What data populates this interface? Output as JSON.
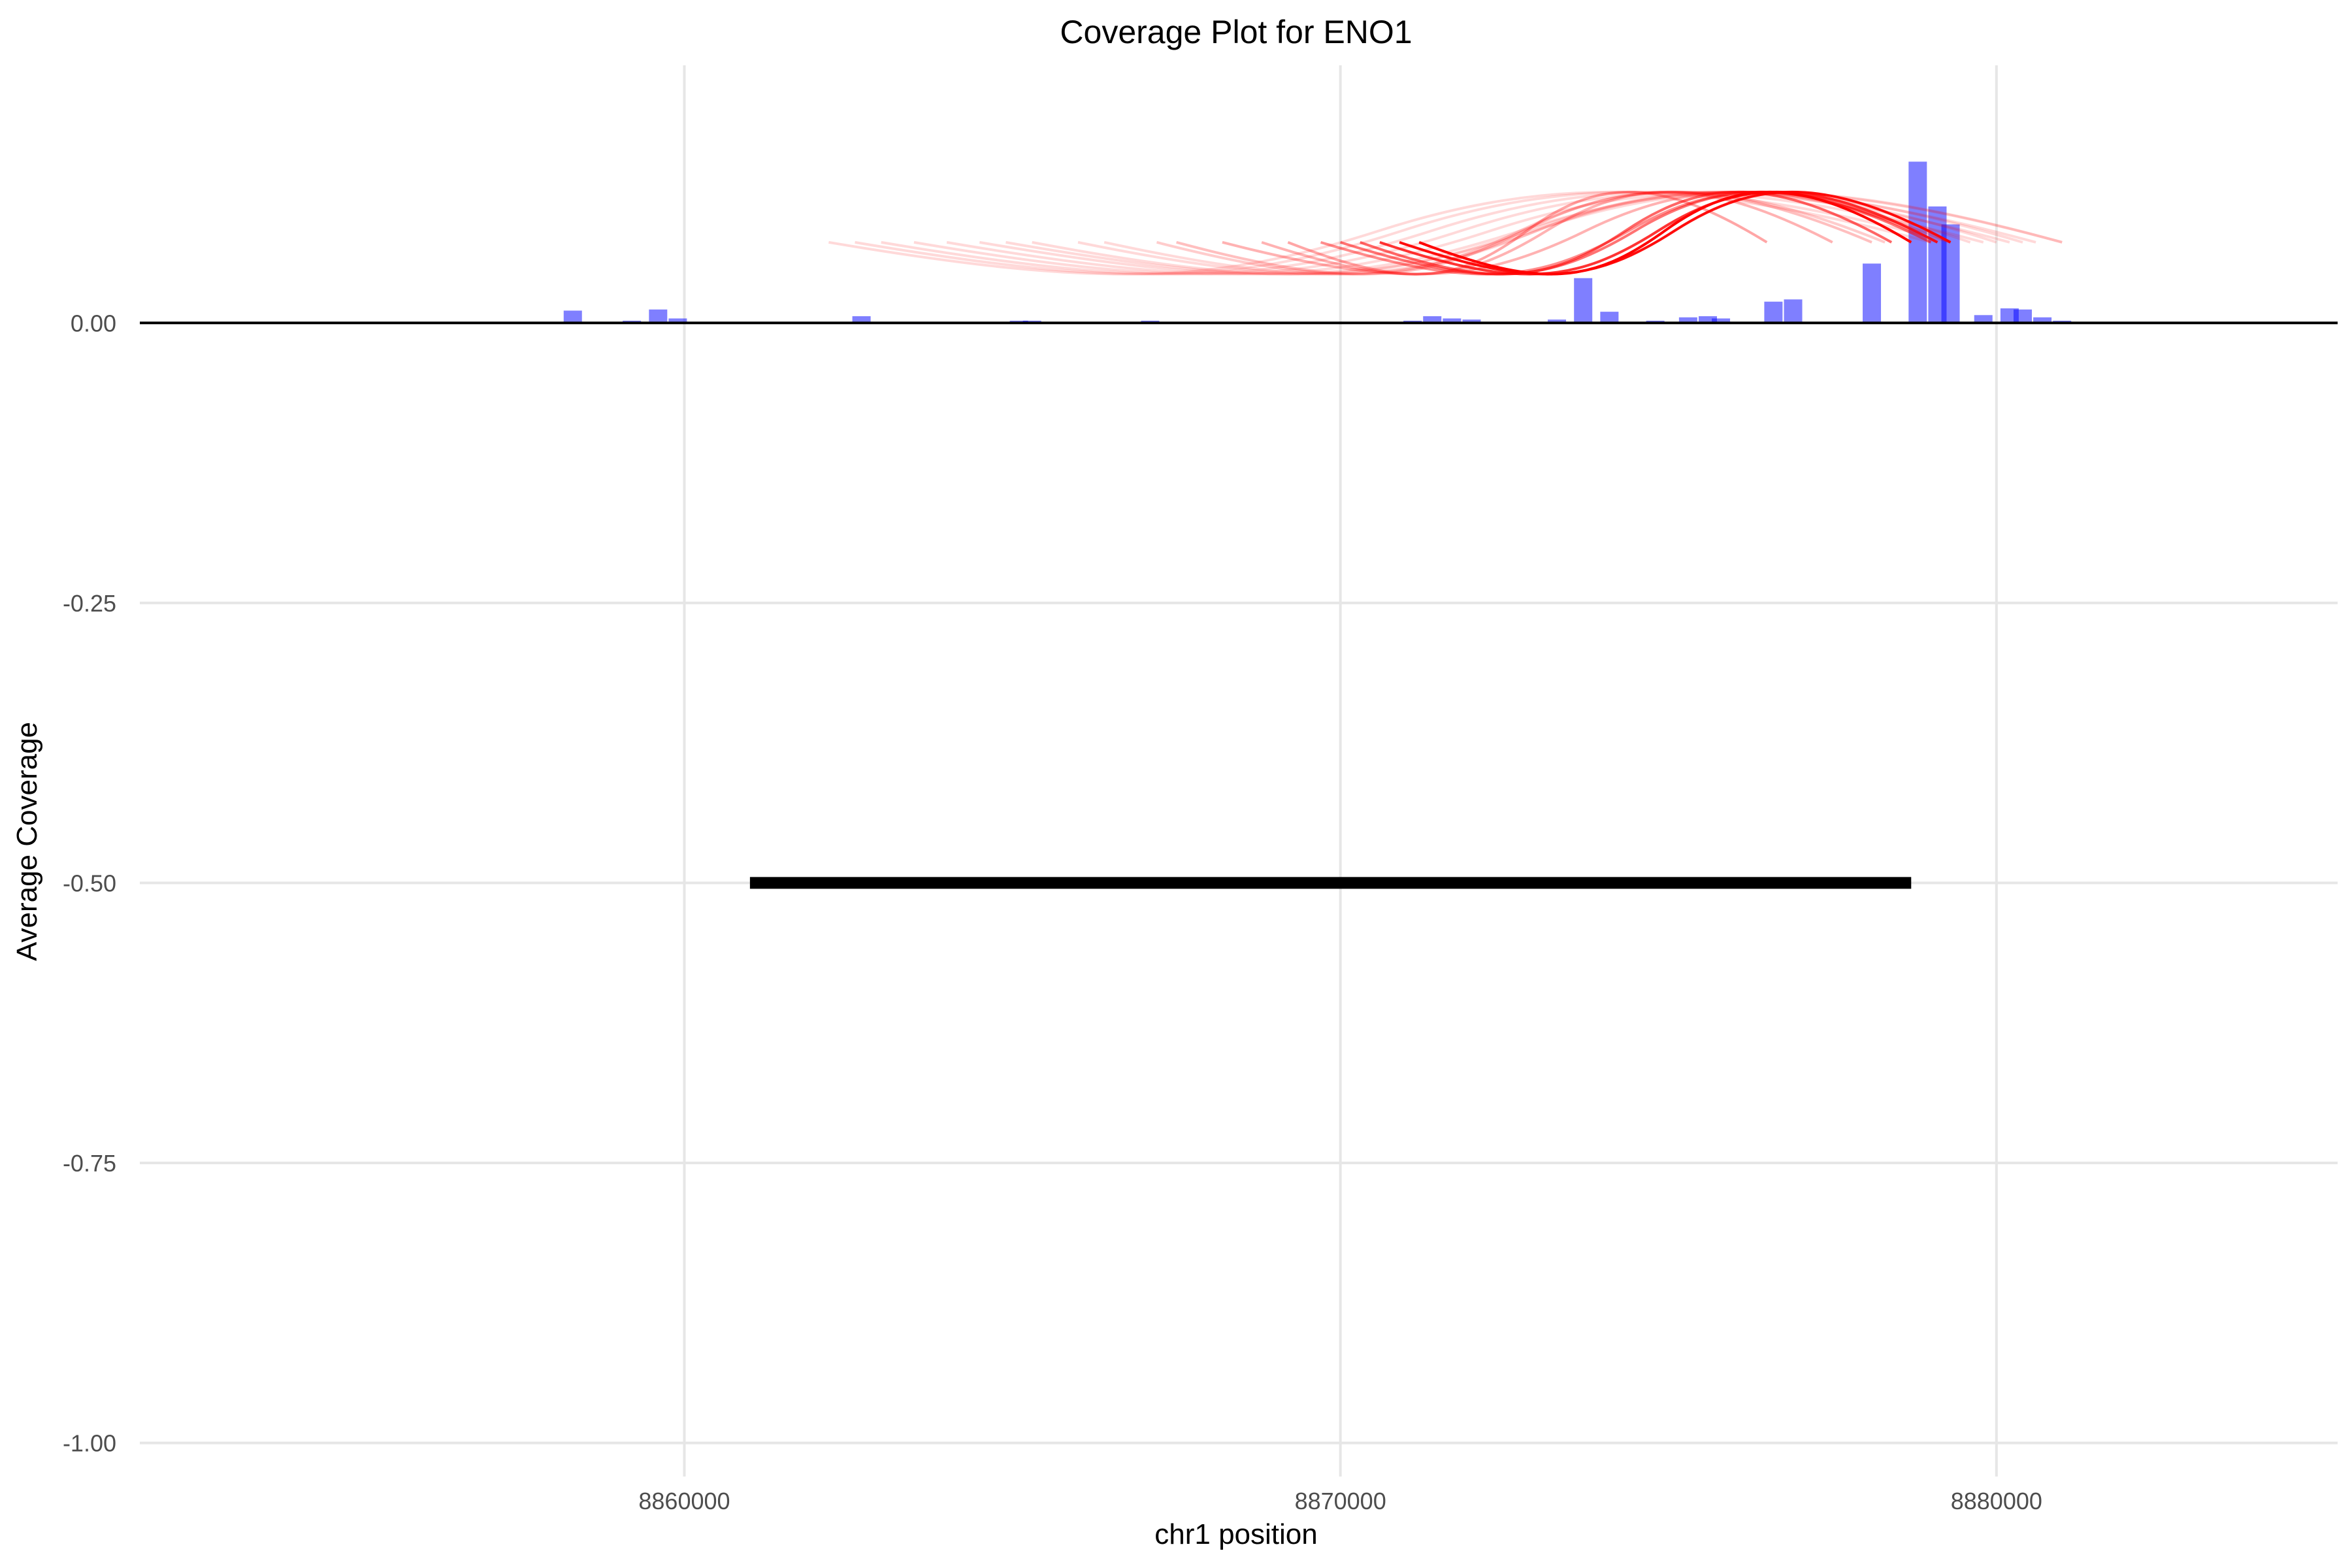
{
  "chart_data": {
    "type": "bar",
    "title": "Coverage Plot for ENO1",
    "xlabel": "chr1 position",
    "ylabel": "Average Coverage",
    "xlim": [
      8851700,
      8885200
    ],
    "ylim": [
      -1.03,
      0.23
    ],
    "x_ticks": [
      8860000,
      8870000,
      8880000
    ],
    "x_tick_labels": [
      "8860000",
      "8870000",
      "8880000"
    ],
    "y_ticks": [
      0.0,
      -0.25,
      -0.5,
      -0.75,
      -1.0
    ],
    "y_tick_labels": [
      "0.00",
      "-0.25",
      "-0.50",
      "-0.75",
      "-1.00"
    ],
    "grid": true,
    "colors": {
      "coverage": "#0000ff",
      "junction": "#ff0000",
      "gene": "#000000"
    },
    "coverage_bars": [
      {
        "x": 8855200,
        "y": 0.001
      },
      {
        "x": 8855500,
        "y": 0.001
      },
      {
        "x": 8857200,
        "y": 0.001
      },
      {
        "x": 8857800,
        "y": 0.001
      },
      {
        "x": 8858300,
        "y": 0.011
      },
      {
        "x": 8859200,
        "y": 0.002
      },
      {
        "x": 8859600,
        "y": 0.012
      },
      {
        "x": 8859900,
        "y": 0.004
      },
      {
        "x": 8862500,
        "y": 0.001
      },
      {
        "x": 8862700,
        "y": 0.006
      },
      {
        "x": 8863200,
        "y": 0.001
      },
      {
        "x": 8863700,
        "y": 0.001
      },
      {
        "x": 8864200,
        "y": 0.001
      },
      {
        "x": 8864500,
        "y": 0.001
      },
      {
        "x": 8865100,
        "y": 0.002
      },
      {
        "x": 8865300,
        "y": 0.002
      },
      {
        "x": 8866400,
        "y": 0.001
      },
      {
        "x": 8866700,
        "y": 0.001
      },
      {
        "x": 8867100,
        "y": 0.002
      },
      {
        "x": 8867500,
        "y": 0.001
      },
      {
        "x": 8869200,
        "y": 0.001
      },
      {
        "x": 8870800,
        "y": 0.001
      },
      {
        "x": 8871100,
        "y": 0.002
      },
      {
        "x": 8871400,
        "y": 0.006
      },
      {
        "x": 8871700,
        "y": 0.004
      },
      {
        "x": 8872000,
        "y": 0.003
      },
      {
        "x": 8873300,
        "y": 0.003
      },
      {
        "x": 8873700,
        "y": 0.04
      },
      {
        "x": 8874100,
        "y": 0.01
      },
      {
        "x": 8874800,
        "y": 0.002
      },
      {
        "x": 8875300,
        "y": 0.005
      },
      {
        "x": 8875600,
        "y": 0.006
      },
      {
        "x": 8875800,
        "y": 0.004
      },
      {
        "x": 8876200,
        "y": 0.001
      },
      {
        "x": 8876600,
        "y": 0.019
      },
      {
        "x": 8876900,
        "y": 0.021
      },
      {
        "x": 8878100,
        "y": 0.053
      },
      {
        "x": 8878800,
        "y": 0.144
      },
      {
        "x": 8879100,
        "y": 0.104
      },
      {
        "x": 8879300,
        "y": 0.088
      },
      {
        "x": 8879800,
        "y": 0.007
      },
      {
        "x": 8880200,
        "y": 0.013
      },
      {
        "x": 8880400,
        "y": 0.012
      },
      {
        "x": 8880700,
        "y": 0.005
      },
      {
        "x": 8881000,
        "y": 0.002
      },
      {
        "x": 8881500,
        "y": 0.001
      }
    ],
    "junctions": [
      {
        "start": 8862200,
        "end": 8879000,
        "opacity": 0.15
      },
      {
        "start": 8862600,
        "end": 8879300,
        "opacity": 0.15
      },
      {
        "start": 8863000,
        "end": 8879800,
        "opacity": 0.15
      },
      {
        "start": 8863500,
        "end": 8880200,
        "opacity": 0.15
      },
      {
        "start": 8864000,
        "end": 8880600,
        "opacity": 0.15
      },
      {
        "start": 8864500,
        "end": 8881000,
        "opacity": 0.15
      },
      {
        "start": 8864900,
        "end": 8881000,
        "opacity": 0.15
      },
      {
        "start": 8865300,
        "end": 8880400,
        "opacity": 0.15
      },
      {
        "start": 8866000,
        "end": 8880000,
        "opacity": 0.15
      },
      {
        "start": 8866400,
        "end": 8879600,
        "opacity": 0.15
      },
      {
        "start": 8867200,
        "end": 8878300,
        "opacity": 0.2
      },
      {
        "start": 8867500,
        "end": 8878100,
        "opacity": 0.25
      },
      {
        "start": 8868200,
        "end": 8879300,
        "opacity": 0.3
      },
      {
        "start": 8868800,
        "end": 8877500,
        "opacity": 0.3
      },
      {
        "start": 8869200,
        "end": 8876500,
        "opacity": 0.35
      },
      {
        "start": 8869700,
        "end": 8879100,
        "opacity": 0.45
      },
      {
        "start": 8870000,
        "end": 8879000,
        "opacity": 0.55
      },
      {
        "start": 8870300,
        "end": 8878400,
        "opacity": 0.6
      },
      {
        "start": 8870600,
        "end": 8879100,
        "opacity": 0.8
      },
      {
        "start": 8870900,
        "end": 8879300,
        "opacity": 0.95
      },
      {
        "start": 8871200,
        "end": 8878700,
        "opacity": 1.0
      }
    ],
    "gene_segments": [
      {
        "start": 8861000,
        "end": 8878700,
        "y": -0.5
      }
    ]
  }
}
